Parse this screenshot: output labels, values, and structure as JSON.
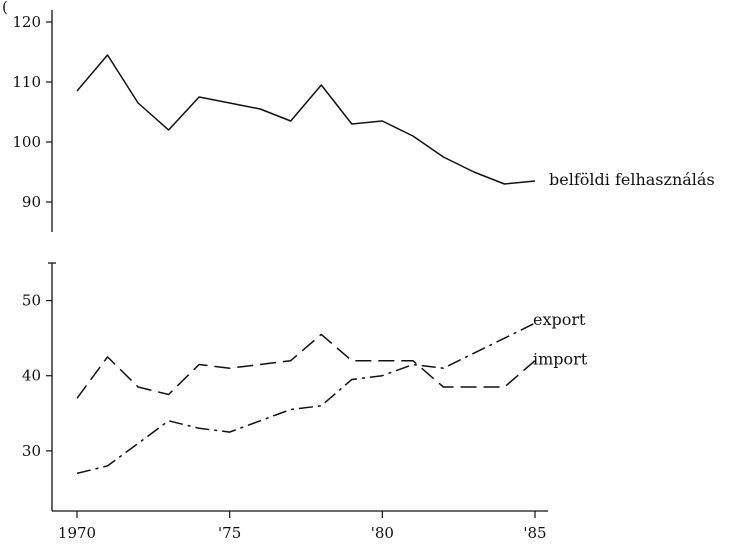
{
  "chart_data": {
    "type": "line",
    "title": "",
    "xlabel": "",
    "ylabel": "",
    "y_unit_fragment": "(",
    "x": [
      1970,
      1971,
      1972,
      1973,
      1974,
      1975,
      1976,
      1977,
      1978,
      1979,
      1980,
      1981,
      1982,
      1983,
      1984,
      1985
    ],
    "x_ticks": [
      1970,
      1975,
      1980,
      1985
    ],
    "x_tick_labels": [
      "1970",
      "'75",
      "'80",
      "'85"
    ],
    "upper_panel": {
      "ylim": [
        85,
        122
      ],
      "y_ticks": [
        90,
        100,
        110,
        120
      ],
      "y_tick_labels": [
        "90",
        "100",
        "110",
        "120"
      ]
    },
    "lower_panel": {
      "ylim": [
        22,
        55
      ],
      "y_ticks": [
        30,
        40,
        50
      ],
      "y_tick_labels": [
        "30",
        "40",
        "50"
      ]
    },
    "axis_break": true,
    "grid": false,
    "legend": "labels at line ends",
    "series": [
      {
        "name": "belföldi felhasználás",
        "panel": "upper",
        "style": "solid",
        "values": [
          108.5,
          114.5,
          106.5,
          102,
          107.5,
          106.5,
          105.5,
          103.5,
          109.5,
          103,
          103.5,
          101,
          97.5,
          95,
          93,
          93.5
        ]
      },
      {
        "name": "export",
        "panel": "lower",
        "style": "dash-dot",
        "values": [
          27,
          28,
          31,
          34,
          33,
          32.5,
          34,
          35.5,
          36,
          39.5,
          40,
          41.5,
          41,
          43,
          45,
          47
        ]
      },
      {
        "name": "import",
        "panel": "lower",
        "style": "dashed",
        "values": [
          37,
          42.5,
          38.5,
          37.5,
          41.5,
          41,
          41.5,
          42,
          45.5,
          42,
          42,
          42,
          38.5,
          38.5,
          38.5,
          42
        ]
      }
    ]
  }
}
